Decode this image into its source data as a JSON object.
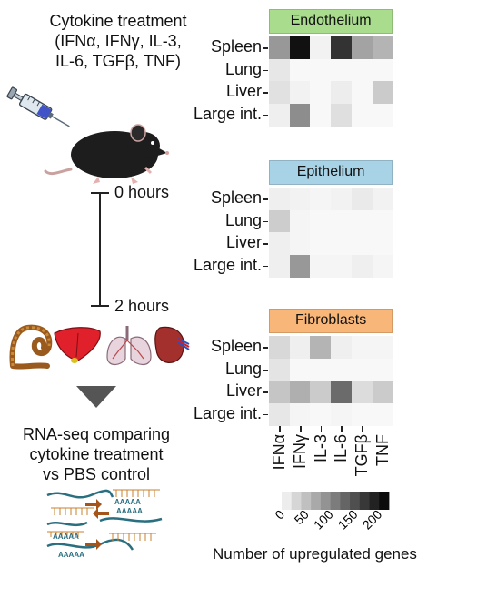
{
  "left": {
    "treatment_lines": [
      "Cytokine treatment",
      "(IFNα, IFNγ, IL-3,",
      "IL-6, TGFβ, TNF)"
    ],
    "time_start": "0 hours",
    "time_end": "2 hours",
    "rnaseq_lines": [
      "RNA-seq comparing",
      "cytokine treatment",
      "vs PBS control"
    ],
    "polya_labels": [
      "AAAAA",
      "AAAAA",
      "AAAAA",
      "AAAAA"
    ]
  },
  "panels": [
    {
      "title": "Endothelium",
      "header_color": "#a9dc8c",
      "rows": [
        "Spleen",
        "Lung",
        "Liver",
        "Large int."
      ],
      "values": [
        [
          85,
          205,
          5,
          175,
          75,
          60
        ],
        [
          15,
          0,
          0,
          0,
          0,
          0
        ],
        [
          20,
          5,
          0,
          10,
          0,
          40
        ],
        [
          8,
          95,
          0,
          22,
          0,
          0
        ]
      ]
    },
    {
      "title": "Epithelium",
      "header_color": "#a8d3e6",
      "rows": [
        "Spleen",
        "Lung",
        "Liver",
        "Large int."
      ],
      "values": [
        [
          8,
          5,
          3,
          5,
          12,
          5
        ],
        [
          38,
          3,
          0,
          0,
          0,
          0
        ],
        [
          8,
          3,
          0,
          0,
          0,
          0
        ],
        [
          8,
          85,
          3,
          3,
          8,
          3
        ]
      ]
    },
    {
      "title": "Fibroblasts",
      "header_color": "#f8b678",
      "rows": [
        "Spleen",
        "Lung",
        "Liver",
        "Large int."
      ],
      "values": [
        [
          28,
          8,
          60,
          8,
          3,
          3
        ],
        [
          18,
          0,
          0,
          0,
          0,
          0
        ],
        [
          45,
          65,
          40,
          125,
          25,
          40
        ],
        [
          15,
          3,
          0,
          3,
          0,
          0
        ]
      ]
    }
  ],
  "columns": [
    "IFNα",
    "IFNγ",
    "IL-3",
    "IL-6",
    "TGFβ",
    "TNF"
  ],
  "colorbar": {
    "min": 0,
    "max": 220,
    "ticks": [
      "0",
      "50",
      "100",
      "150",
      "200"
    ],
    "label": "Number of upregulated genes"
  }
}
